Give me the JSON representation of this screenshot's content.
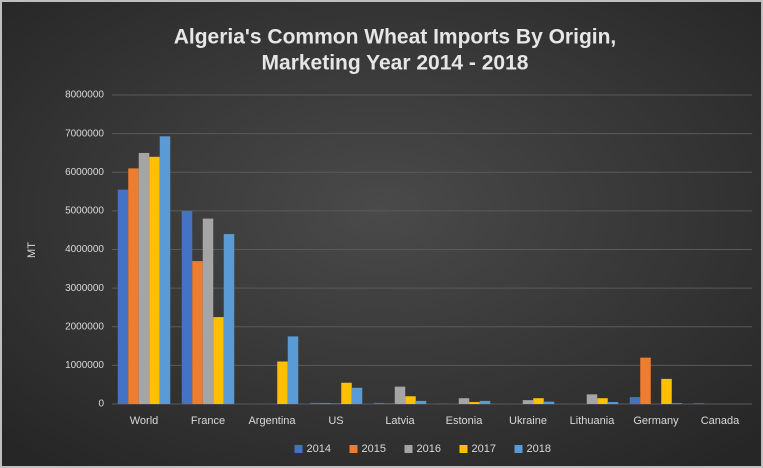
{
  "chart_data": {
    "type": "bar",
    "title": [
      "Algeria's Common Wheat Imports By Origin,",
      "Marketing Year 2014 - 2018"
    ],
    "y_label": "MT",
    "categories": [
      "World",
      "France",
      "Argentina",
      "US",
      "Latvia",
      "Estonia",
      "Ukraine",
      "Lithuania",
      "Germany",
      "Canada"
    ],
    "series": [
      {
        "name": "2014",
        "color": "#4472c4",
        "values": [
          5550000,
          5000000,
          0,
          30000,
          30000,
          10000,
          0,
          0,
          180000,
          20000
        ]
      },
      {
        "name": "2015",
        "color": "#ed7d31",
        "values": [
          6100000,
          3700000,
          0,
          20000,
          10000,
          0,
          0,
          0,
          1200000,
          0
        ]
      },
      {
        "name": "2016",
        "color": "#a5a5a5",
        "values": [
          6500000,
          4800000,
          0,
          10000,
          450000,
          150000,
          100000,
          250000,
          0,
          0
        ]
      },
      {
        "name": "2017",
        "color": "#ffc000",
        "values": [
          6400000,
          2250000,
          1100000,
          550000,
          200000,
          50000,
          150000,
          150000,
          650000,
          0
        ]
      },
      {
        "name": "2018",
        "color": "#5b9bd5",
        "values": [
          6930000,
          4400000,
          1750000,
          420000,
          80000,
          80000,
          60000,
          50000,
          20000,
          0
        ]
      }
    ],
    "ylim": [
      0,
      8000000
    ],
    "yticks": [
      0,
      1000000,
      2000000,
      3000000,
      4000000,
      5000000,
      6000000,
      7000000,
      8000000
    ],
    "grid": true,
    "legend": "bottom"
  }
}
